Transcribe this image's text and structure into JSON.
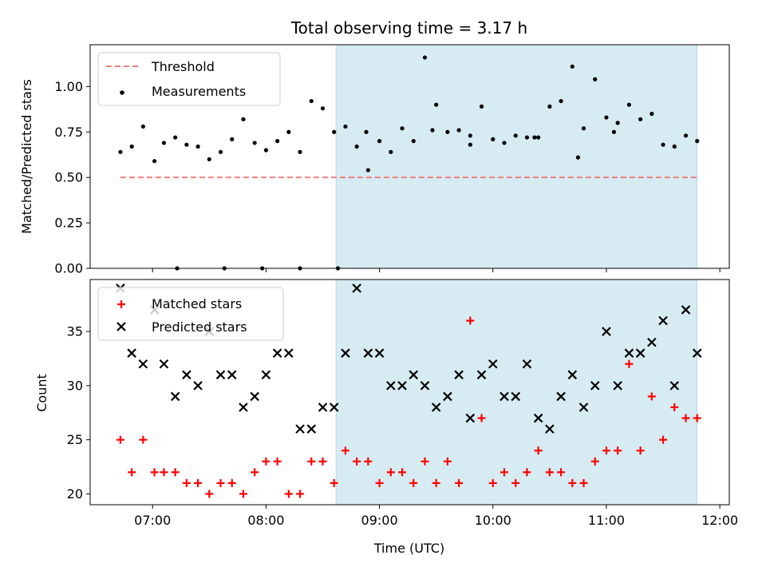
{
  "figure": {
    "title": "Total observing time = 3.17 h"
  },
  "chart_data": [
    {
      "type": "scatter",
      "ylabel": "Matched/Predicted stars",
      "xlabel": "",
      "xlim": [
        "06:27",
        "12:05"
      ],
      "ylim": [
        0,
        1.23
      ],
      "yticks": [
        0,
        0.25,
        0.5,
        0.75,
        1.0
      ],
      "ytick_labels": [
        "0.00",
        "0.25",
        "0.50",
        "0.75",
        "1.00"
      ],
      "xticks": [
        "07:00",
        "08:00",
        "09:00",
        "10:00",
        "11:00",
        "12:00"
      ],
      "shaded_span": [
        "08:37",
        "11:48"
      ],
      "legend": {
        "location": "upper-left",
        "entries": [
          "Threshold",
          "Measurements"
        ]
      },
      "series": [
        {
          "name": "Threshold",
          "style": "dashed-line",
          "color": "#f08080",
          "x": [
            "06:43",
            "11:48"
          ],
          "y": [
            0.5,
            0.5
          ]
        },
        {
          "name": "Measurements",
          "style": "dot",
          "color": "#000000",
          "x": [
            "06:43",
            "06:49",
            "06:55",
            "07:01",
            "07:06",
            "07:12",
            "07:18",
            "07:24",
            "07:30",
            "07:36",
            "07:42",
            "07:48",
            "07:54",
            "08:00",
            "08:06",
            "08:12",
            "08:18",
            "08:24",
            "08:30",
            "08:36",
            "08:42",
            "08:48",
            "08:54",
            "09:00",
            "09:06",
            "09:12",
            "09:18",
            "09:24",
            "09:30",
            "09:36",
            "09:42",
            "09:48",
            "09:54",
            "10:00",
            "10:06",
            "10:12",
            "10:18",
            "10:24",
            "10:30",
            "10:36",
            "10:42",
            "10:48",
            "10:54",
            "11:00",
            "11:06",
            "11:12",
            "11:18",
            "11:24",
            "11:30",
            "11:36",
            "11:42",
            "11:48",
            "07:13",
            "07:38",
            "07:58",
            "08:18",
            "08:38",
            "08:53",
            "09:28",
            "09:48",
            "10:22",
            "10:45",
            "11:04"
          ],
          "y": [
            0.64,
            0.67,
            0.78,
            0.59,
            0.69,
            0.72,
            0.68,
            0.67,
            0.6,
            0.64,
            0.71,
            0.82,
            0.69,
            0.65,
            0.7,
            0.75,
            0.64,
            0.92,
            0.88,
            0.75,
            0.78,
            0.67,
            0.54,
            0.7,
            0.64,
            0.77,
            0.7,
            1.16,
            0.9,
            0.75,
            0.76,
            0.68,
            0.89,
            0.71,
            0.69,
            0.73,
            0.72,
            0.72,
            0.89,
            0.92,
            1.11,
            0.77,
            1.04,
            0.83,
            0.8,
            0.9,
            0.82,
            0.85,
            0.68,
            0.67,
            0.73,
            0.7,
            0.0,
            0.0,
            0.0,
            0.0,
            0.0,
            0.75,
            0.76,
            0.73,
            0.72,
            0.61,
            0.75
          ]
        }
      ]
    },
    {
      "type": "scatter",
      "ylabel": "Count",
      "xlabel": "Time (UTC)",
      "xlim": [
        "06:27",
        "12:05"
      ],
      "ylim": [
        19,
        39.8
      ],
      "yticks": [
        20,
        25,
        30,
        35
      ],
      "ytick_labels": [
        "20",
        "25",
        "30",
        "35"
      ],
      "xticks": [
        "07:00",
        "08:00",
        "09:00",
        "10:00",
        "11:00",
        "12:00"
      ],
      "xtick_labels": [
        "07:00",
        "08:00",
        "09:00",
        "10:00",
        "11:00",
        "12:00"
      ],
      "shaded_span": [
        "08:37",
        "11:48"
      ],
      "legend": {
        "location": "upper-left",
        "entries": [
          "Matched stars",
          "Predicted stars"
        ]
      },
      "series": [
        {
          "name": "Matched stars",
          "style": "plus",
          "color": "#ff0000",
          "x": [
            "06:43",
            "06:49",
            "06:55",
            "07:01",
            "07:06",
            "07:12",
            "07:18",
            "07:24",
            "07:30",
            "07:36",
            "07:42",
            "07:48",
            "07:54",
            "08:00",
            "08:06",
            "08:12",
            "08:18",
            "08:24",
            "08:30",
            "08:36",
            "08:42",
            "08:48",
            "08:54",
            "09:00",
            "09:06",
            "09:12",
            "09:18",
            "09:24",
            "09:30",
            "09:36",
            "09:42",
            "09:48",
            "09:54",
            "10:00",
            "10:06",
            "10:12",
            "10:18",
            "10:24",
            "10:30",
            "10:36",
            "10:42",
            "10:48",
            "10:54",
            "11:00",
            "11:06",
            "11:12",
            "11:18",
            "11:24",
            "11:30",
            "11:36",
            "11:42",
            "11:48"
          ],
          "y": [
            25,
            22,
            25,
            22,
            22,
            22,
            21,
            21,
            20,
            21,
            21,
            20,
            22,
            23,
            23,
            20,
            20,
            23,
            23,
            21,
            24,
            23,
            23,
            21,
            22,
            22,
            21,
            23,
            21,
            23,
            21,
            36,
            27,
            21,
            22,
            21,
            22,
            24,
            22,
            22,
            21,
            21,
            23,
            24,
            24,
            32,
            24,
            29,
            25,
            28,
            27,
            27
          ]
        },
        {
          "name": "Predicted stars",
          "style": "x",
          "color": "#000000",
          "x": [
            "06:43",
            "06:49",
            "06:55",
            "07:01",
            "07:06",
            "07:12",
            "07:18",
            "07:24",
            "07:30",
            "07:36",
            "07:42",
            "07:48",
            "07:54",
            "08:00",
            "08:06",
            "08:12",
            "08:18",
            "08:24",
            "08:30",
            "08:36",
            "08:42",
            "08:48",
            "08:54",
            "09:00",
            "09:06",
            "09:12",
            "09:18",
            "09:24",
            "09:30",
            "09:36",
            "09:42",
            "09:48",
            "09:54",
            "10:00",
            "10:06",
            "10:12",
            "10:18",
            "10:24",
            "10:30",
            "10:36",
            "10:42",
            "10:48",
            "10:54",
            "11:00",
            "11:06",
            "11:12",
            "11:18",
            "11:24",
            "11:30",
            "11:36",
            "11:42",
            "11:48"
          ],
          "y": [
            39,
            33,
            32,
            37,
            32,
            29,
            31,
            30,
            35,
            31,
            31,
            28,
            29,
            31,
            33,
            33,
            26,
            26,
            28,
            28,
            33,
            39,
            33,
            33,
            30,
            30,
            31,
            30,
            28,
            29,
            31,
            27,
            31,
            32,
            29,
            29,
            32,
            27,
            26,
            29,
            31,
            28,
            30,
            35,
            30,
            33,
            33,
            34,
            36,
            30,
            37,
            33
          ]
        }
      ]
    }
  ]
}
